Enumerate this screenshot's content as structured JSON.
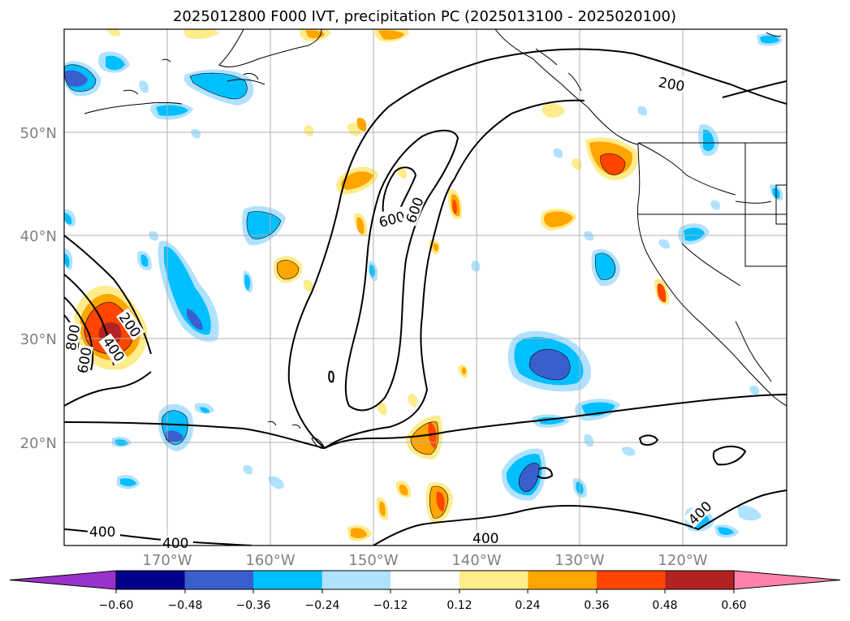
{
  "title": "2025012800 F000 IVT, precipitation PC (2025013100 - 2025020100)",
  "map": {
    "lat_labels": [
      "50°N",
      "40°N",
      "30°N",
      "20°N"
    ],
    "lon_labels": [
      "170°W",
      "160°W",
      "150°W",
      "140°W",
      "130°W",
      "120°W"
    ],
    "gridlines": true,
    "ivt_contour_labels": [
      "200",
      "200",
      "400",
      "400",
      "400",
      "400",
      "400",
      "600",
      "600",
      "600",
      "800"
    ]
  },
  "colorbar": {
    "orientation": "horizontal",
    "extend": "both",
    "tick_labels": [
      "−0.60",
      "−0.48",
      "−0.36",
      "−0.24",
      "−0.12",
      "0.12",
      "0.24",
      "0.36",
      "0.48",
      "0.60"
    ],
    "colors": [
      "#9932cc",
      "#00008b",
      "#3a5fcd",
      "#00bfff",
      "#b0e2ff",
      "#ffffff",
      "#ffec8b",
      "#ffa500",
      "#ff4500",
      "#b22222",
      "#ff82ab"
    ]
  },
  "colors": {
    "coastline": "#000000",
    "grid": "#b0b0b0",
    "axis_label": "#808080"
  }
}
